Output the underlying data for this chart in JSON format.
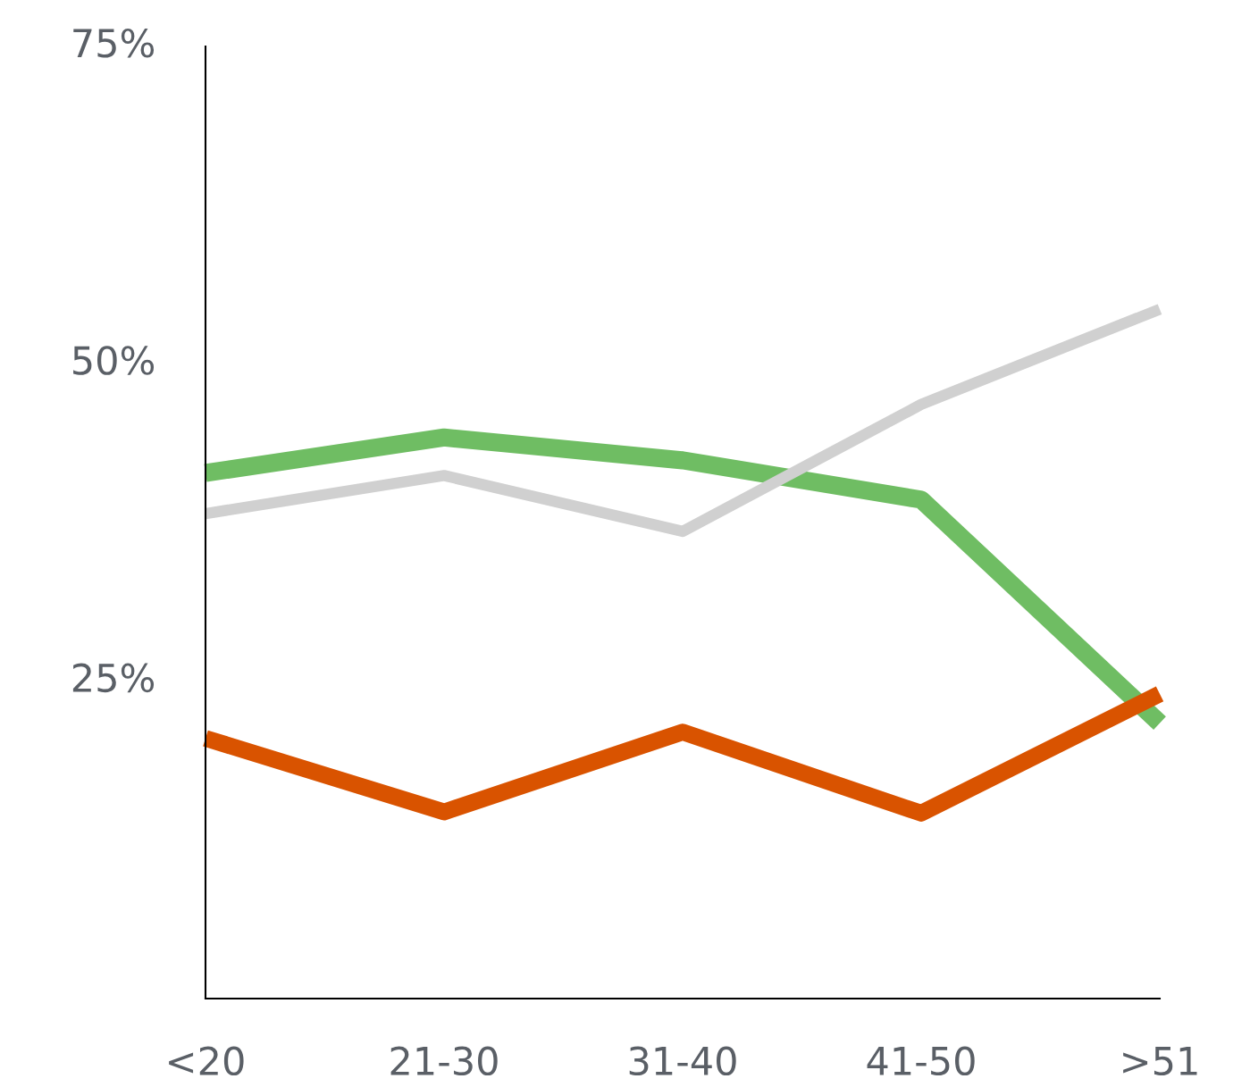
{
  "chart_data": {
    "type": "line",
    "categories": [
      "<20",
      "21-30",
      "31-40",
      "41-50",
      ">51"
    ],
    "series": [
      {
        "color": "#6fbd63",
        "values": [
          41.4,
          44.2,
          42.4,
          39.3,
          21.7
        ]
      },
      {
        "color": "#d0d0d0",
        "values": [
          38.2,
          41.2,
          36.8,
          46.8,
          54.3
        ]
      },
      {
        "color": "#d95300",
        "values": [
          20.5,
          14.7,
          21.0,
          14.6,
          24.0
        ]
      }
    ],
    "ylim": [
      0,
      75
    ],
    "yticks": [
      {
        "value": 25,
        "label": "25%"
      },
      {
        "value": 50,
        "label": "50%"
      },
      {
        "value": 75,
        "label": "75%"
      }
    ],
    "grid": false,
    "marker": "none",
    "line_style": "solid"
  }
}
